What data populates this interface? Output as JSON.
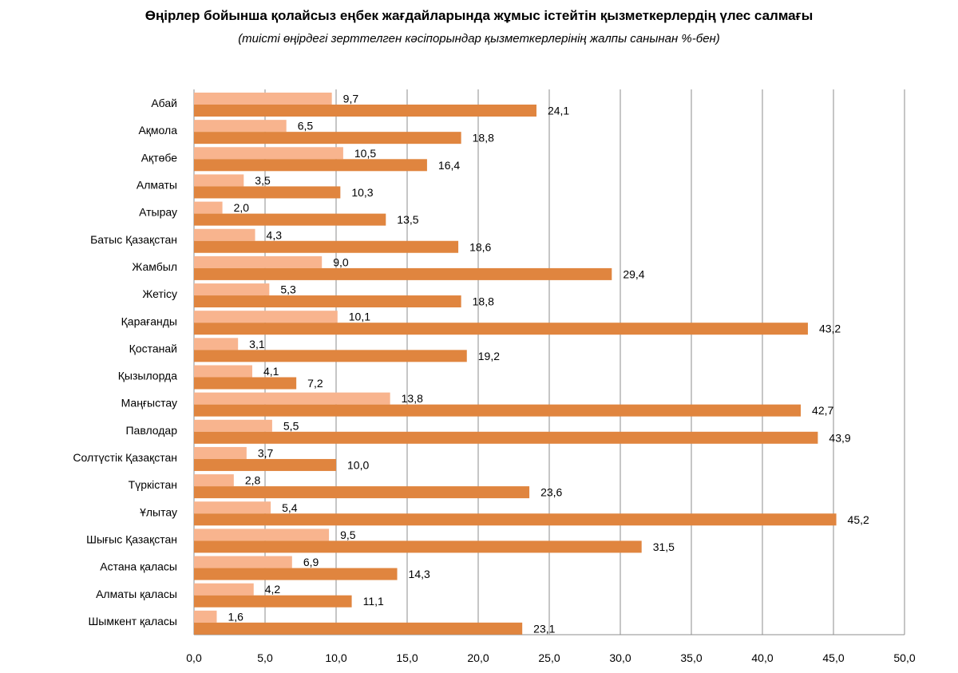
{
  "title": "Өңірлер бойынша қолайсыз еңбек жағдайларында  жұмыс істейтін қызметкерлердің үлес салмағы",
  "subtitle": "(тиісті өңірдегі зерттелген кәсіпорындар қызметкерлерінің жалпы санынан %-бен)",
  "colors": {
    "series1": "#F8B48E",
    "series2": "#E0853F",
    "grid": "#8c8c8c"
  },
  "chart_data": {
    "type": "bar",
    "orientation": "horizontal",
    "title": "Өңірлер бойынша қолайсыз еңбек жағдайларында  жұмыс істейтін қызметкерлердің үлес салмағы",
    "subtitle": "(тиісті өңірдегі зерттелген кәсіпорындар қызметкерлерінің жалпы санынан %-бен)",
    "categories": [
      "Абай",
      "Ақмола",
      "Ақтөбе",
      "Алматы",
      "Атырау",
      "Батыс Қазақстан",
      "Жамбыл",
      "Жетісу",
      "Қарағанды",
      "Қостанай",
      "Қызылорда",
      "Маңғыстау",
      "Павлодар",
      "Солтүстік Қазақстан",
      "Түркістан",
      "Ұлытау",
      "Шығыс  Қазақстан",
      "Астана қаласы",
      "Алматы қаласы",
      "Шымкент қаласы"
    ],
    "series": [
      {
        "values": [
          9.7,
          6.5,
          10.5,
          3.5,
          2.0,
          4.3,
          9.0,
          5.3,
          10.1,
          3.1,
          4.1,
          13.8,
          5.5,
          3.7,
          2.8,
          5.4,
          9.5,
          6.9,
          4.2,
          1.6
        ]
      },
      {
        "values": [
          24.1,
          18.8,
          16.4,
          10.3,
          13.5,
          18.6,
          29.4,
          18.8,
          43.2,
          19.2,
          7.2,
          42.7,
          43.9,
          10.0,
          23.6,
          45.2,
          31.5,
          14.3,
          11.1,
          23.1
        ]
      }
    ],
    "data_labels": {
      "series1": [
        "9,7",
        "6,5",
        "10,5",
        "3,5",
        "2,0",
        "4,3",
        "9,0",
        "5,3",
        "10,1",
        "3,1",
        "4,1",
        "13,8",
        "5,5",
        "3,7",
        "2,8",
        "5,4",
        "9,5",
        "6,9",
        "4,2",
        "1,6"
      ],
      "series2": [
        "24,1",
        "18,8",
        "16,4",
        "10,3",
        "13,5",
        "18,6",
        "29,4",
        "18,8",
        "43,2",
        "19,2",
        "7,2",
        "42,7",
        "43,9",
        "10,0",
        "23,6",
        "45,2",
        "31,5",
        "14,3",
        "11,1",
        "23,1"
      ]
    },
    "xticks": [
      "0,0",
      "5,0",
      "10,0",
      "15,0",
      "20,0",
      "25,0",
      "30,0",
      "35,0",
      "40,0",
      "45,0",
      "50,0"
    ],
    "xlim": [
      0,
      50
    ],
    "xlabel": "",
    "ylabel": "",
    "grid": "vertical",
    "legend": "none"
  }
}
